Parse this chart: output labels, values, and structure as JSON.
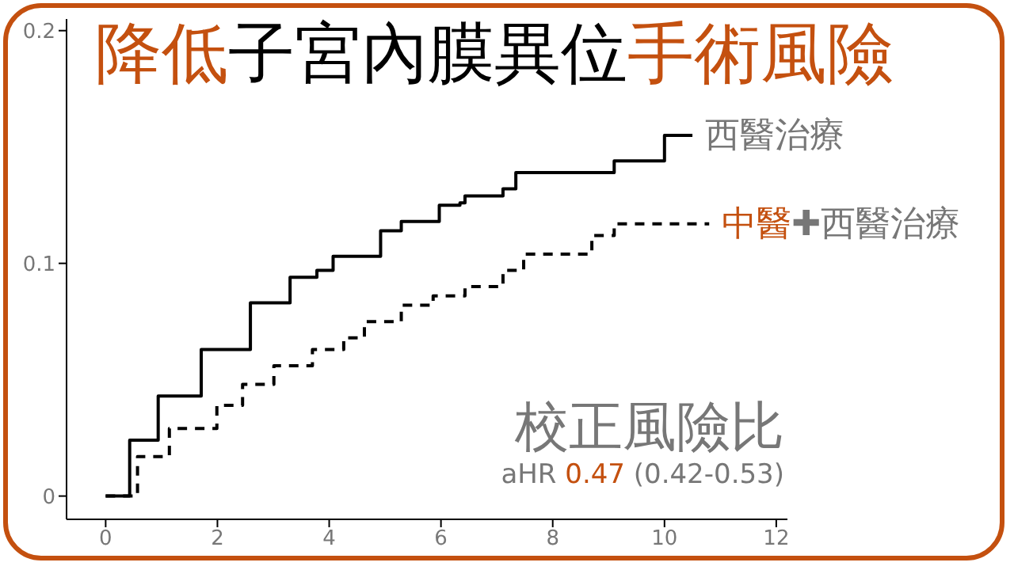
{
  "chart_data": {
    "type": "step",
    "title": "降低子宮內膜異位手術風險",
    "annotations": [
      "校正風險比",
      "aHR 0.47 (0.42-0.53)"
    ],
    "xlim": [
      -0.7,
      12.2
    ],
    "xticks": [
      0,
      2,
      4,
      6,
      8,
      10,
      12
    ],
    "ylim": [
      -0.01,
      0.205
    ],
    "yticks": [
      0,
      0.1,
      0.2
    ],
    "grid": false,
    "legend": false,
    "marker": "none",
    "series": [
      {
        "name": "西醫治療",
        "color": "#000000",
        "line_style": "solid",
        "x": [
          0,
          0.43,
          0.94,
          1.71,
          2.59,
          3.3,
          3.78,
          4.07,
          4.92,
          5.29,
          5.97,
          6.34,
          6.43,
          7.11,
          7.34,
          9.1,
          10.0,
          10.5
        ],
        "values": [
          0,
          0.024,
          0.043,
          0.063,
          0.083,
          0.094,
          0.097,
          0.103,
          0.114,
          0.118,
          0.125,
          0.126,
          0.129,
          0.132,
          0.139,
          0.144,
          0.155,
          0.155
        ]
      },
      {
        "name": "中醫✚西醫治療",
        "color": "#000000",
        "line_style": "dashed",
        "x": [
          0,
          0.57,
          1.14,
          1.99,
          2.45,
          3.01,
          3.7,
          4.26,
          4.63,
          5.29,
          5.86,
          6.43,
          7.11,
          7.48,
          8.7,
          9.1,
          10.8
        ],
        "values": [
          0,
          0.017,
          0.029,
          0.039,
          0.048,
          0.056,
          0.063,
          0.068,
          0.075,
          0.082,
          0.086,
          0.09,
          0.097,
          0.104,
          0.112,
          0.117,
          0.117
        ]
      }
    ]
  }
}
